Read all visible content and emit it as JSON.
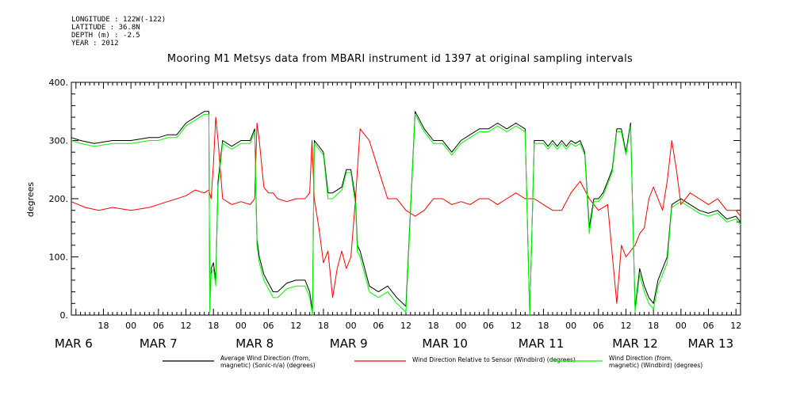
{
  "header": {
    "lines": [
      "LONGITUDE : 122W(-122)",
      "LATITUDE : 36.8N",
      "DEPTH (m) : -2.5",
      "YEAR : 2012"
    ]
  },
  "chart_data": {
    "type": "line",
    "title": "Mooring M1 Metsys data from MBARI instrument id 1397 at original sampling intervals",
    "ylabel": "degrees",
    "xlabel": "",
    "ylim": [
      0,
      400
    ],
    "yticks": [
      "0.",
      "100.",
      "200.",
      "300.",
      "400."
    ],
    "x_units": "hours since MAR 6 00:00",
    "xlim": [
      11,
      157
    ],
    "hour_ticks": [
      {
        "x": 18,
        "label": "18"
      },
      {
        "x": 24,
        "label": "00"
      },
      {
        "x": 30,
        "label": "06"
      },
      {
        "x": 36,
        "label": "12"
      },
      {
        "x": 42,
        "label": "18"
      },
      {
        "x": 48,
        "label": "00"
      },
      {
        "x": 54,
        "label": "06"
      },
      {
        "x": 60,
        "label": "12"
      },
      {
        "x": 66,
        "label": "18"
      },
      {
        "x": 72,
        "label": "00"
      },
      {
        "x": 78,
        "label": "06"
      },
      {
        "x": 84,
        "label": "12"
      },
      {
        "x": 90,
        "label": "18"
      },
      {
        "x": 96,
        "label": "00"
      },
      {
        "x": 102,
        "label": "06"
      },
      {
        "x": 108,
        "label": "12"
      },
      {
        "x": 114,
        "label": "18"
      },
      {
        "x": 120,
        "label": "00"
      },
      {
        "x": 126,
        "label": "06"
      },
      {
        "x": 132,
        "label": "12"
      },
      {
        "x": 138,
        "label": "18"
      },
      {
        "x": 144,
        "label": "00"
      },
      {
        "x": 150,
        "label": "06"
      },
      {
        "x": 156,
        "label": "12"
      }
    ],
    "day_labels": [
      {
        "x": 11.5,
        "label": "MAR  6"
      },
      {
        "x": 30,
        "label": "MAR  7"
      },
      {
        "x": 51,
        "label": "MAR  8"
      },
      {
        "x": 71.5,
        "label": "MAR  9"
      },
      {
        "x": 92.5,
        "label": "MAR 10"
      },
      {
        "x": 113.5,
        "label": "MAR 11"
      },
      {
        "x": 134,
        "label": "MAR 12"
      },
      {
        "x": 150.5,
        "label": "MAR 13"
      }
    ],
    "series": [
      {
        "name": "Average Wind Direction (from, magnetic) (Sonic-n/a) (degrees)",
        "color": "#000000",
        "x": [
          11,
          13,
          16,
          20,
          24,
          28,
          30,
          32,
          34,
          36,
          38,
          40,
          41,
          41.2,
          41.5,
          42,
          42.5,
          43,
          44,
          46,
          48,
          50,
          51,
          51.5,
          52,
          53,
          54,
          55,
          56,
          58,
          60,
          62,
          63,
          63.6,
          64,
          65,
          66,
          67,
          68,
          70,
          71,
          72,
          73,
          73.4,
          74,
          76,
          78,
          80,
          82,
          84,
          86,
          88,
          90,
          92,
          93,
          94,
          96,
          98,
          100,
          102,
          104,
          106,
          108,
          110,
          111,
          112,
          113,
          114,
          115,
          116,
          117,
          118,
          119,
          120,
          121,
          122,
          123,
          124,
          125,
          126,
          127,
          128,
          129,
          129.3,
          130,
          131,
          132,
          133,
          134,
          135,
          136,
          137,
          138,
          139,
          140,
          141,
          142,
          144,
          146,
          148,
          150,
          152,
          154,
          156,
          157
        ],
        "y": [
          305,
          300,
          295,
          300,
          300,
          305,
          305,
          310,
          310,
          330,
          340,
          350,
          350,
          10,
          80,
          90,
          60,
          230,
          300,
          290,
          300,
          300,
          320,
          130,
          100,
          70,
          55,
          40,
          40,
          55,
          60,
          60,
          40,
          5,
          300,
          290,
          280,
          210,
          210,
          220,
          250,
          250,
          200,
          120,
          110,
          50,
          40,
          50,
          30,
          15,
          350,
          320,
          300,
          300,
          290,
          280,
          300,
          310,
          320,
          320,
          330,
          320,
          330,
          320,
          0,
          300,
          300,
          300,
          290,
          300,
          290,
          300,
          290,
          300,
          295,
          300,
          280,
          150,
          200,
          200,
          210,
          230,
          250,
          270,
          320,
          320,
          280,
          330,
          10,
          80,
          50,
          30,
          20,
          60,
          80,
          100,
          190,
          200,
          190,
          180,
          175,
          180,
          165,
          170,
          160
        ]
      },
      {
        "name": "Wind Direction Relative to Sensor (Windbird) (degrees)",
        "color": "#ff0000",
        "x": [
          11,
          14,
          17,
          20,
          24,
          28,
          32,
          36,
          38,
          40,
          41,
          41.5,
          42,
          42.5,
          43,
          44,
          46,
          48,
          50,
          51,
          51.5,
          52,
          53,
          54,
          55,
          56,
          58,
          60,
          62,
          63,
          63.5,
          64,
          65,
          66,
          67,
          68,
          69,
          70,
          71,
          72,
          73,
          74,
          76,
          78,
          80,
          82,
          84,
          86,
          88,
          90,
          92,
          94,
          96,
          98,
          100,
          102,
          104,
          106,
          108,
          110,
          112,
          114,
          116,
          118,
          120,
          122,
          124,
          126,
          128,
          130,
          131,
          132,
          133,
          134,
          135,
          136,
          137,
          138,
          139,
          140,
          141,
          142,
          143,
          144,
          146,
          148,
          150,
          152,
          154,
          156,
          157
        ],
        "y": [
          195,
          185,
          180,
          185,
          180,
          185,
          195,
          205,
          215,
          210,
          215,
          200,
          260,
          340,
          300,
          200,
          190,
          195,
          190,
          200,
          330,
          300,
          220,
          210,
          210,
          200,
          195,
          200,
          200,
          210,
          300,
          200,
          150,
          90,
          110,
          30,
          80,
          110,
          80,
          100,
          200,
          320,
          300,
          250,
          200,
          200,
          180,
          170,
          180,
          200,
          200,
          190,
          195,
          190,
          200,
          200,
          190,
          200,
          210,
          200,
          200,
          190,
          180,
          180,
          210,
          230,
          200,
          180,
          190,
          20,
          120,
          100,
          110,
          120,
          140,
          150,
          200,
          220,
          200,
          180,
          230,
          300,
          250,
          190,
          210,
          200,
          190,
          200,
          180,
          180,
          170
        ]
      },
      {
        "name": "Wind Direction (from, magnetic) (Windbird) (degrees)",
        "color": "#00ff00",
        "x": [
          11,
          13,
          16,
          20,
          24,
          28,
          30,
          32,
          34,
          36,
          38,
          40,
          41,
          41.2,
          41.5,
          42,
          42.5,
          43,
          44,
          46,
          48,
          50,
          51,
          51.5,
          52,
          53,
          54,
          55,
          56,
          58,
          60,
          62,
          63,
          63.6,
          64,
          65,
          66,
          67,
          68,
          70,
          71,
          72,
          73,
          73.4,
          74,
          76,
          78,
          80,
          82,
          84,
          86,
          88,
          90,
          92,
          93,
          94,
          96,
          98,
          100,
          102,
          104,
          106,
          108,
          110,
          111,
          112,
          113,
          114,
          115,
          116,
          117,
          118,
          119,
          120,
          121,
          122,
          123,
          124,
          125,
          126,
          127,
          128,
          129,
          129.3,
          130,
          131,
          132,
          133,
          134,
          135,
          136,
          137,
          138,
          139,
          140,
          141,
          142,
          144,
          146,
          148,
          150,
          152,
          154,
          156,
          157
        ],
        "y": [
          300,
          295,
          290,
          295,
          295,
          300,
          300,
          305,
          305,
          325,
          335,
          345,
          345,
          5,
          70,
          80,
          50,
          220,
          295,
          285,
          295,
          295,
          315,
          120,
          90,
          60,
          45,
          30,
          30,
          45,
          50,
          50,
          30,
          0,
          295,
          285,
          275,
          200,
          200,
          215,
          245,
          245,
          190,
          110,
          100,
          40,
          30,
          40,
          20,
          5,
          345,
          315,
          295,
          295,
          285,
          275,
          295,
          305,
          315,
          315,
          325,
          315,
          325,
          315,
          0,
          295,
          295,
          295,
          285,
          295,
          285,
          295,
          285,
          295,
          290,
          295,
          275,
          140,
          195,
          195,
          205,
          225,
          245,
          265,
          315,
          315,
          275,
          325,
          5,
          70,
          40,
          20,
          10,
          50,
          70,
          90,
          185,
          195,
          185,
          175,
          170,
          175,
          160,
          165,
          155
        ]
      }
    ],
    "legend": [
      {
        "line1": "Average Wind Direction (from,",
        "line2": "magnetic) (Sonic-n/a) (degrees)",
        "color": "#000000"
      },
      {
        "line1": "Wind Direction Relative to Sensor (Windbird) (degrees)",
        "line2": "",
        "color": "#ff0000"
      },
      {
        "line1": "Wind Direction (from,",
        "line2": "magnetic) (Windbird) (degrees)",
        "color": "#00ff00"
      }
    ]
  }
}
